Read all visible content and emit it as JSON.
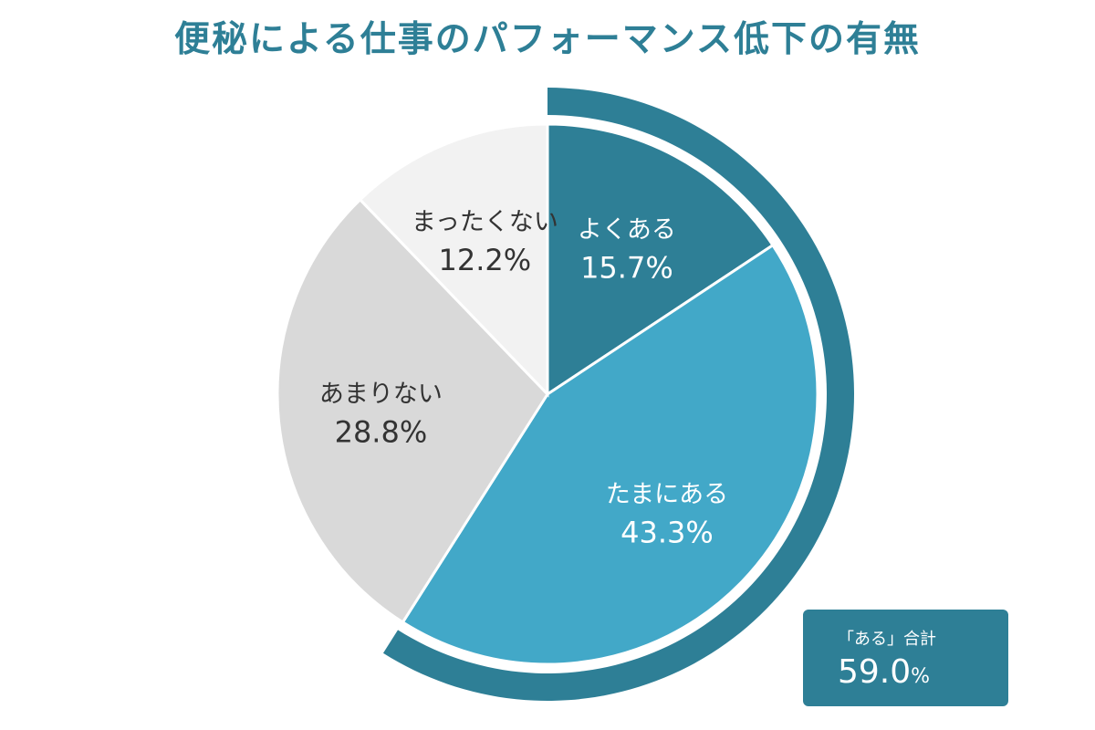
{
  "title": "便秘による仕事のパフォーマンス低下の有無",
  "chart_data": {
    "type": "pie",
    "title": "便秘による仕事のパフォーマンス低下の有無",
    "slices": [
      {
        "label": "よくある",
        "value": 15.7,
        "display": "15.7%",
        "color": "#2e7f96",
        "text_color": "#ffffff"
      },
      {
        "label": "たまにある",
        "value": 43.3,
        "display": "43.3%",
        "color": "#42a8c8",
        "text_color": "#ffffff"
      },
      {
        "label": "あまりない",
        "value": 28.8,
        "display": "28.8%",
        "color": "#d9d9d9",
        "text_color": "#333333"
      },
      {
        "label": "まったくない",
        "value": 12.2,
        "display": "12.2%",
        "color": "#f2f2f2",
        "text_color": "#333333"
      }
    ],
    "annotation": {
      "label": "「ある」合計",
      "value": "59.0",
      "unit": "%",
      "color": "#2e7f96"
    }
  }
}
